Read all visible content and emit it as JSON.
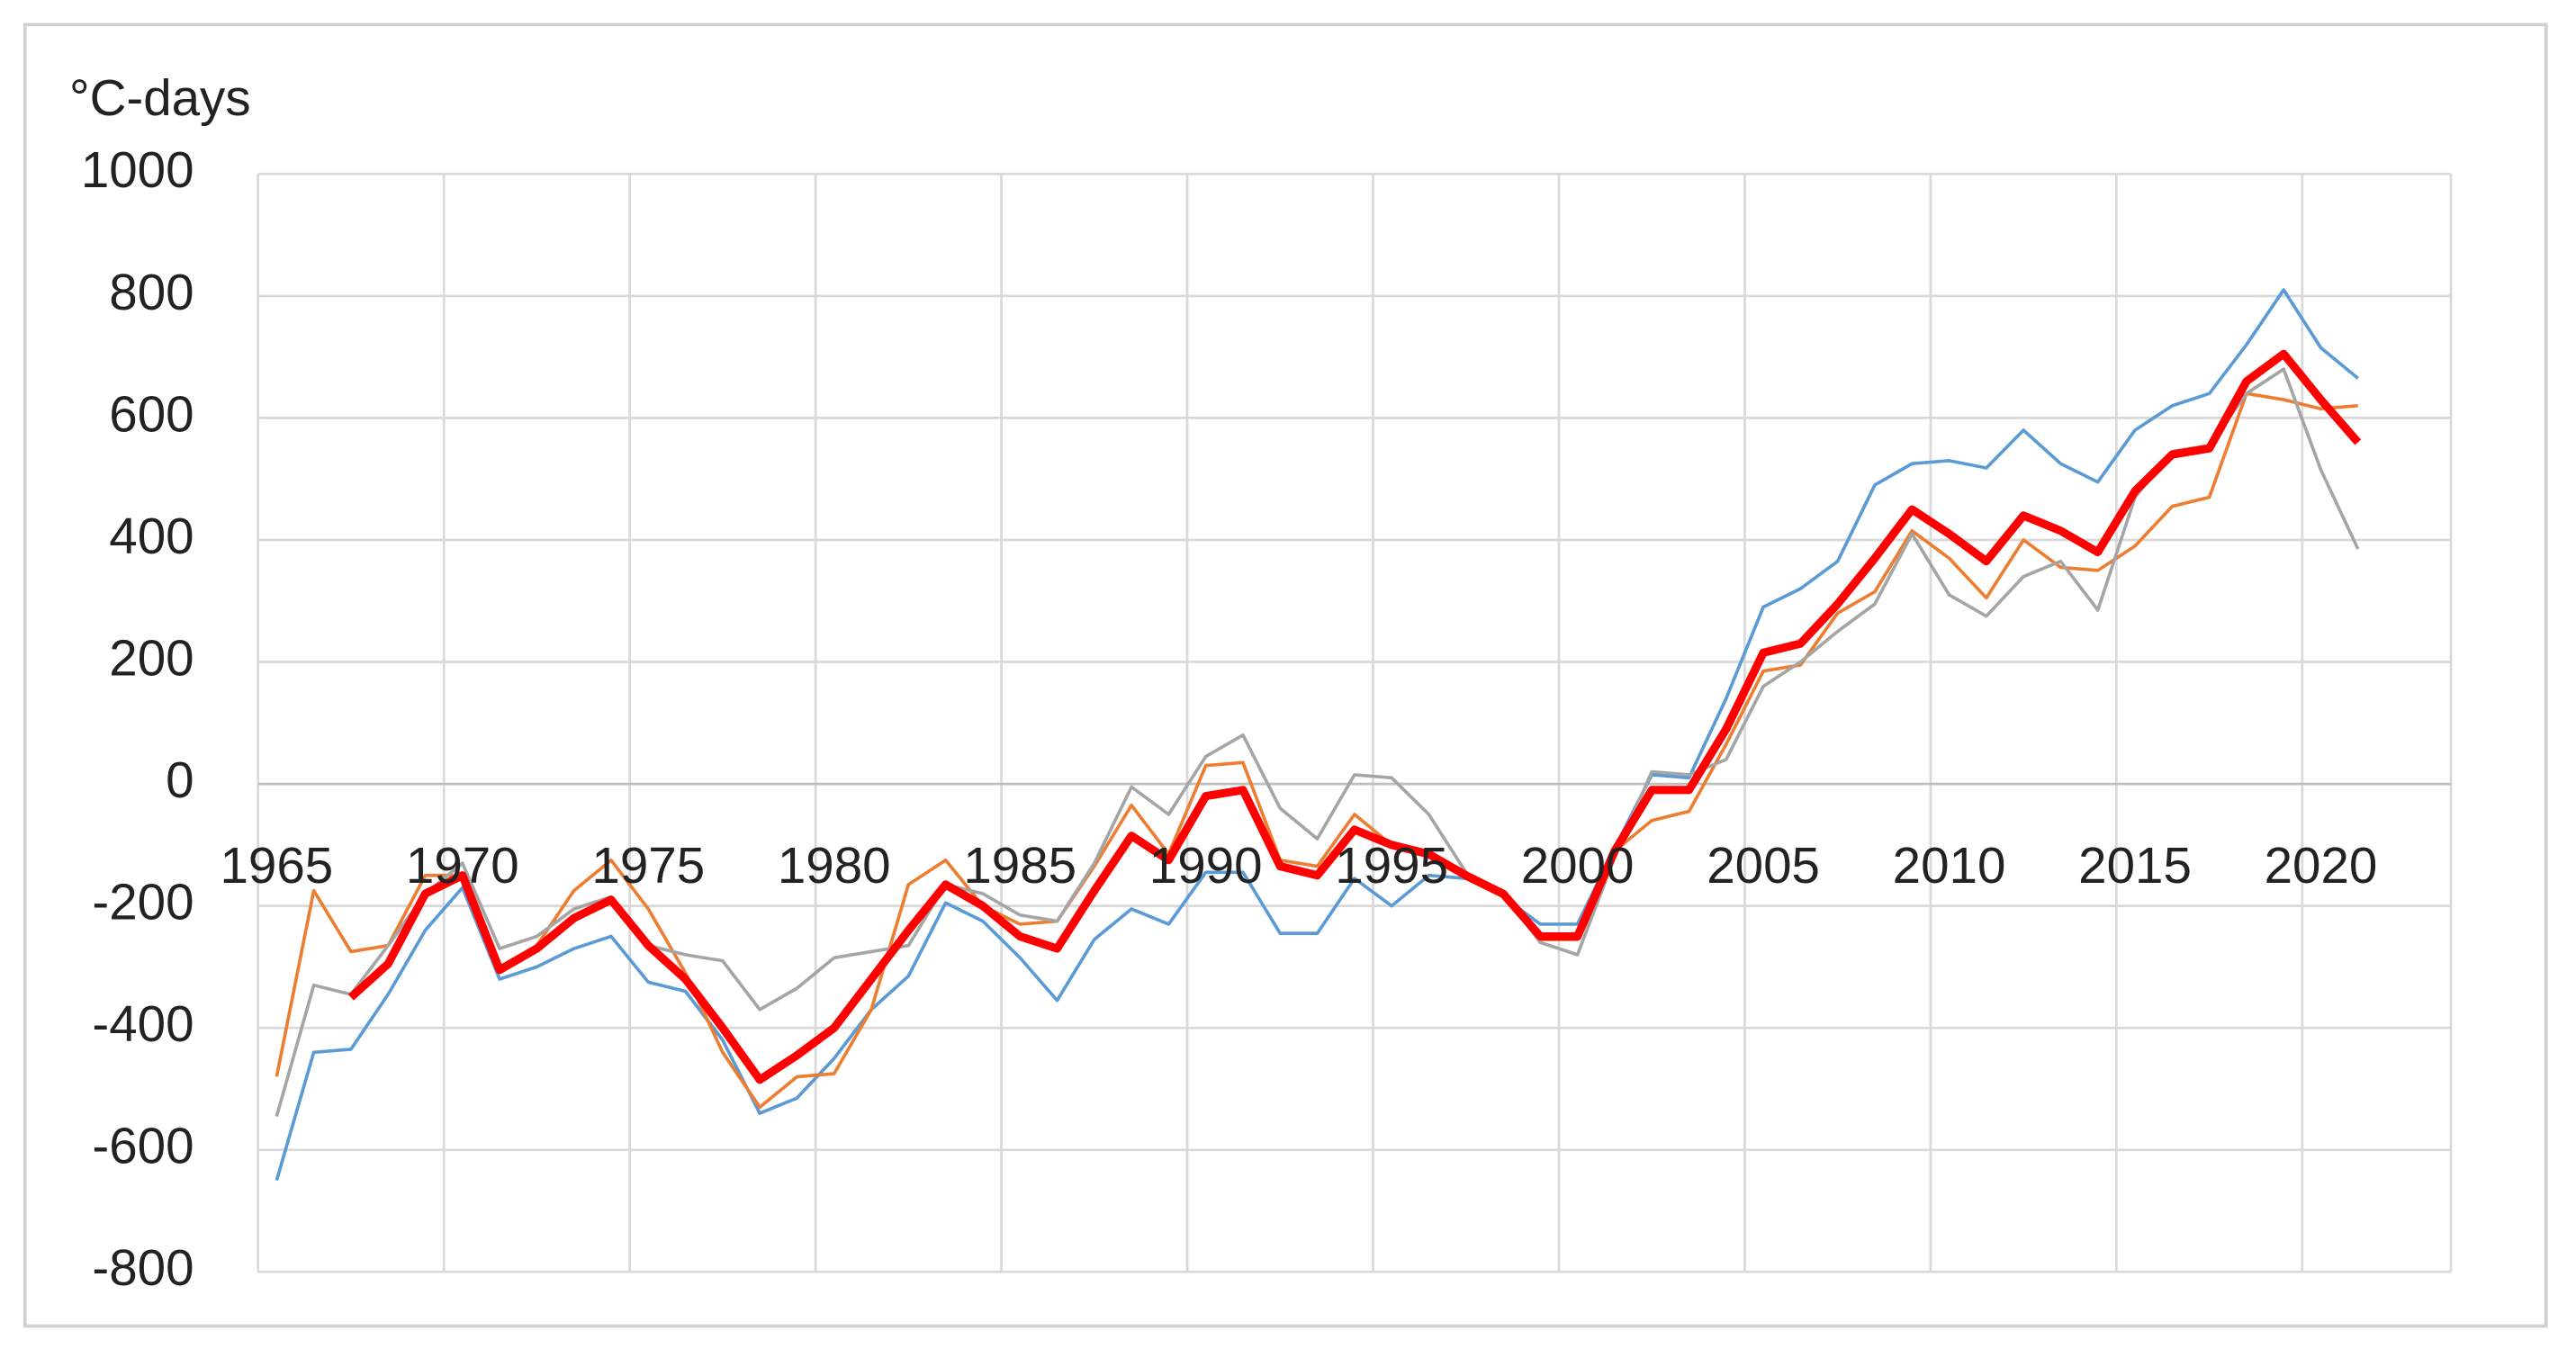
{
  "chart_data": {
    "type": "line",
    "y_label": "°C-days",
    "x": [
      1965,
      1966,
      1967,
      1968,
      1969,
      1970,
      1971,
      1972,
      1973,
      1974,
      1975,
      1976,
      1977,
      1978,
      1979,
      1980,
      1981,
      1982,
      1983,
      1984,
      1985,
      1986,
      1987,
      1988,
      1989,
      1990,
      1991,
      1992,
      1993,
      1994,
      1995,
      1996,
      1997,
      1998,
      1999,
      2000,
      2001,
      2002,
      2003,
      2004,
      2005,
      2006,
      2007,
      2008,
      2009,
      2010,
      2011,
      2012,
      2013,
      2014,
      2015,
      2016,
      2017,
      2018,
      2019,
      2020,
      2021
    ],
    "xlim": [
      1964.5,
      2023.5
    ],
    "xticks": [
      1965,
      1970,
      1975,
      1980,
      1985,
      1990,
      1995,
      2000,
      2005,
      2010,
      2015,
      2020
    ],
    "ylim": [
      -800,
      1000
    ],
    "yticks": [
      -800,
      -600,
      -400,
      -200,
      0,
      200,
      400,
      600,
      800,
      1000
    ],
    "grid": true,
    "series": [
      {
        "color": "#5b9bd5",
        "width": 2,
        "values": [
          -650,
          -440,
          -435,
          -345,
          -240,
          -170,
          -320,
          -300,
          -270,
          -250,
          -325,
          -340,
          -420,
          -540,
          -515,
          -450,
          -370,
          -315,
          -195,
          -225,
          -285,
          -355,
          -255,
          -205,
          -230,
          -145,
          -145,
          -245,
          -245,
          -155,
          -200,
          -150,
          -155,
          -185,
          -230,
          -230,
          -105,
          15,
          10,
          140,
          290,
          320,
          365,
          490,
          525,
          530,
          518,
          580,
          525,
          495,
          580,
          620,
          640,
          720,
          810,
          715,
          665
        ]
      },
      {
        "color": "#ed7d31",
        "width": 2,
        "values": [
          -480,
          -175,
          -275,
          -265,
          -150,
          -150,
          -300,
          -265,
          -175,
          -125,
          -205,
          -310,
          -440,
          -530,
          -480,
          -475,
          -370,
          -165,
          -125,
          -200,
          -230,
          -225,
          -135,
          -35,
          -115,
          30,
          35,
          -125,
          -135,
          -50,
          -100,
          -110,
          -155,
          -185,
          -255,
          -255,
          -110,
          -60,
          -45,
          65,
          185,
          195,
          280,
          315,
          415,
          370,
          305,
          400,
          355,
          350,
          390,
          455,
          470,
          640,
          630,
          615,
          620
        ]
      },
      {
        "color": "#a5a5a5",
        "width": 2,
        "values": [
          -545,
          -330,
          -345,
          -265,
          -180,
          -130,
          -270,
          -250,
          -205,
          -185,
          -265,
          -280,
          -290,
          -370,
          -335,
          -285,
          -275,
          -265,
          -165,
          -180,
          -215,
          -225,
          -130,
          -5,
          -50,
          45,
          80,
          -40,
          -90,
          15,
          10,
          -50,
          -145,
          -180,
          -260,
          -280,
          -120,
          20,
          15,
          40,
          160,
          200,
          250,
          295,
          410,
          310,
          275,
          340,
          365,
          285,
          470,
          545,
          555,
          640,
          680,
          515,
          385
        ]
      },
      {
        "color": "#ff0000",
        "width": 5,
        "values": [
          null,
          null,
          -350,
          -295,
          -180,
          -150,
          -305,
          -270,
          -220,
          -190,
          -265,
          -320,
          -400,
          -485,
          -445,
          -400,
          -320,
          -240,
          -165,
          -200,
          -250,
          -270,
          -175,
          -85,
          -125,
          -20,
          -10,
          -135,
          -150,
          -75,
          -100,
          -115,
          -150,
          -180,
          -250,
          -250,
          -110,
          -10,
          -10,
          90,
          215,
          230,
          295,
          370,
          450,
          410,
          365,
          440,
          415,
          380,
          480,
          540,
          550,
          660,
          705,
          630,
          560
        ]
      }
    ]
  }
}
